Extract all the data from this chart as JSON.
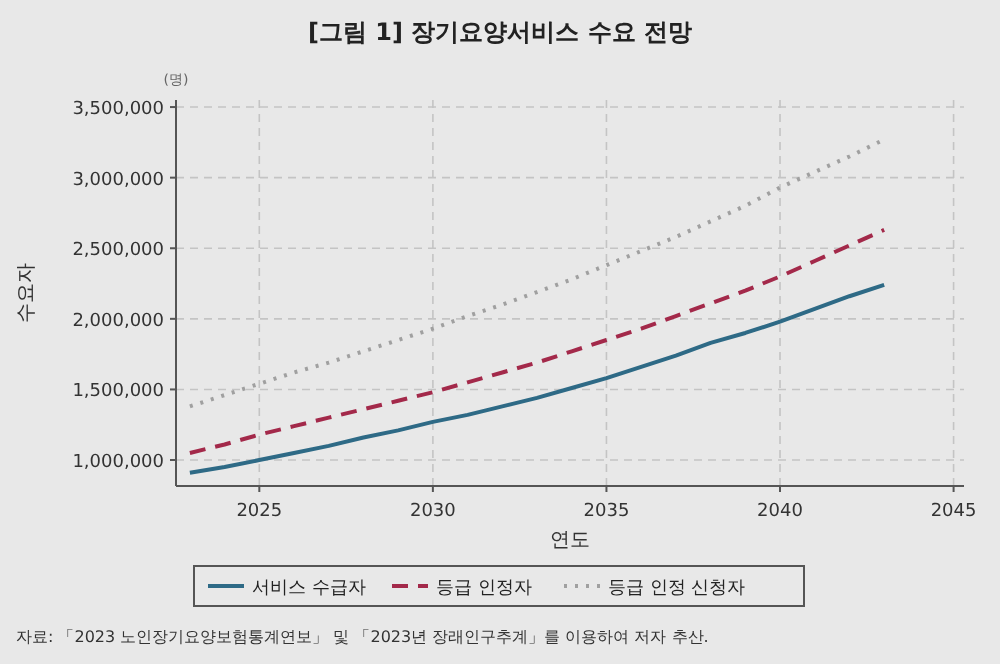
{
  "chart_data": {
    "type": "line",
    "title": "[그림 1] 장기요양서비스 수요 전망",
    "xlabel": "연도",
    "ylabel": "수요자",
    "annotations": [
      "(명)",
      "자료: 「2023 노인장기요양보험통계연보」 및 「2023년 장래인구추계」를 이용하여 저자 추산."
    ],
    "x": [
      2023,
      2024,
      2025,
      2026,
      2027,
      2028,
      2029,
      2030,
      2031,
      2032,
      2033,
      2034,
      2035,
      2036,
      2037,
      2038,
      2039,
      2040,
      2041,
      2042,
      2043
    ],
    "series": [
      {
        "name": "서비스 수급자",
        "color": "#2e6a86",
        "line_style": "solid",
        "values": [
          910000,
          950000,
          1000000,
          1050000,
          1100000,
          1160000,
          1210000,
          1270000,
          1320000,
          1380000,
          1440000,
          1510000,
          1580000,
          1660000,
          1740000,
          1830000,
          1900000,
          1980000,
          2070000,
          2160000,
          2240000
        ]
      },
      {
        "name": "등급 인정자",
        "color": "#a3294a",
        "line_style": "dashed",
        "values": [
          1050000,
          1110000,
          1180000,
          1240000,
          1300000,
          1360000,
          1420000,
          1480000,
          1550000,
          1620000,
          1690000,
          1770000,
          1850000,
          1930000,
          2020000,
          2110000,
          2200000,
          2300000,
          2410000,
          2520000,
          2630000
        ]
      },
      {
        "name": "등급 인정 신청자",
        "color": "#a0a0a0",
        "line_style": "dotted",
        "values": [
          1380000,
          1460000,
          1540000,
          1620000,
          1690000,
          1770000,
          1850000,
          1930000,
          2020000,
          2100000,
          2190000,
          2280000,
          2380000,
          2480000,
          2580000,
          2690000,
          2800000,
          2930000,
          3040000,
          3150000,
          3270000
        ]
      }
    ],
    "xlim": [
      2022.6,
      2045.3
    ],
    "xticks": [
      2025,
      2030,
      2035,
      2040,
      2045
    ],
    "ylim": [
      816000,
      3550000
    ],
    "yticks": [
      {
        "value": 1000000,
        "label": "1,000,000"
      },
      {
        "value": 1500000,
        "label": "1,500,000"
      },
      {
        "value": 2000000,
        "label": "2,000,000"
      },
      {
        "value": 2500000,
        "label": "2,500,000"
      },
      {
        "value": 3000000,
        "label": "3,000,000"
      },
      {
        "value": 3500000,
        "label": "3,500,000"
      }
    ],
    "grid": true,
    "legend": "bottom"
  }
}
